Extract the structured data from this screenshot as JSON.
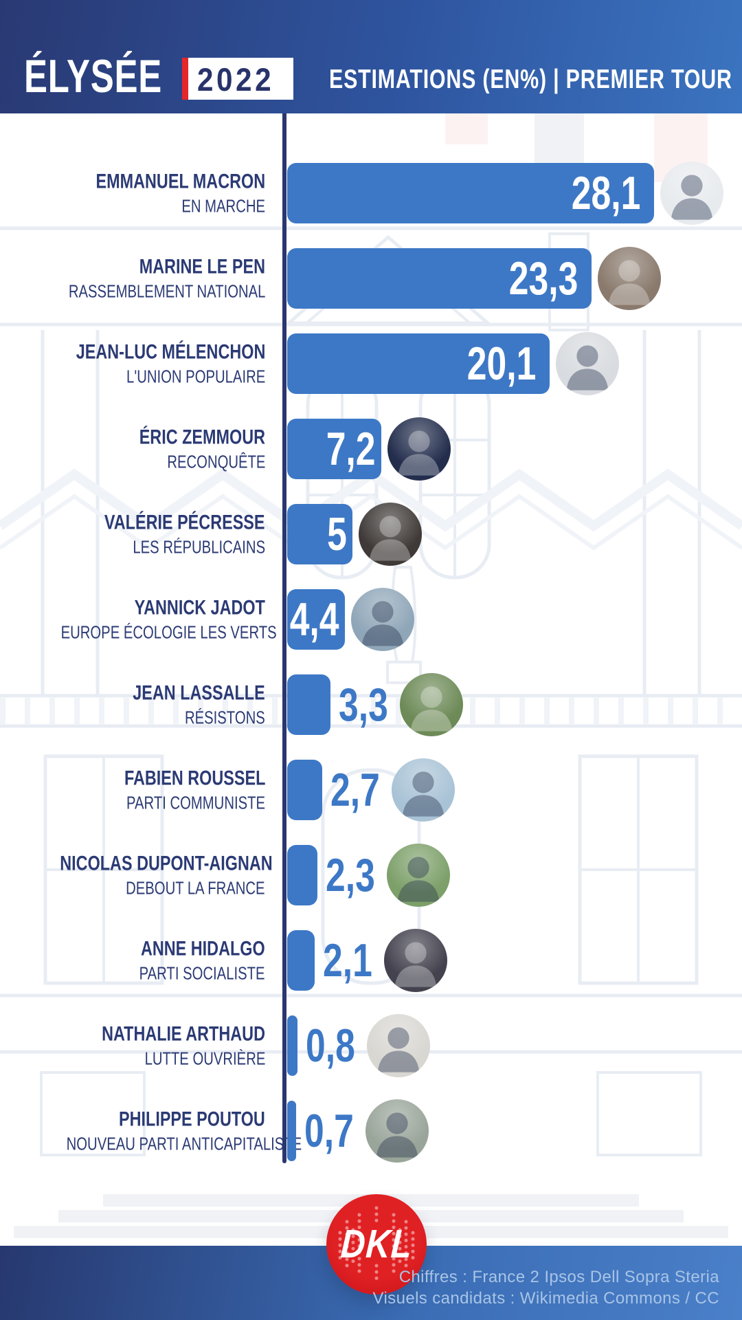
{
  "header": {
    "brand": "ÉLYSÉE",
    "year": "2022",
    "subtitle": "ESTIMATIONS (EN%) | PREMIER TOUR"
  },
  "rows": [
    {
      "name": "EMMANUEL MACRON",
      "party": "EN MARCHE",
      "value": "28,1",
      "value_num": 28.1,
      "photo_bg": "#e8ebee",
      "slug": "emmanuel-macron"
    },
    {
      "name": "MARINE LE PEN",
      "party": "RASSEMBLEMENT NATIONAL",
      "value": "23,3",
      "value_num": 23.3,
      "photo_bg": "#8a7a6d",
      "slug": "marine-le-pen"
    },
    {
      "name": "JEAN-LUC MÉLENCHON",
      "party": "L'UNION POPULAIRE",
      "value": "20,1",
      "value_num": 20.1,
      "photo_bg": "#d8dbdf",
      "slug": "jean-luc-melenchon"
    },
    {
      "name": "ÉRIC ZEMMOUR",
      "party": "RECONQUÊTE",
      "value": "7,2",
      "value_num": 7.2,
      "photo_bg": "#232e4d",
      "slug": "eric-zemmour"
    },
    {
      "name": "VALÉRIE PÉCRESSE",
      "party": "LES RÉPUBLICAINS",
      "value": "5",
      "value_num": 5,
      "photo_bg": "#3f3a38",
      "slug": "valerie-pecresse"
    },
    {
      "name": "YANNICK JADOT",
      "party": "EUROPE ÉCOLOGIE LES VERTS",
      "value": "4,4",
      "value_num": 4.4,
      "photo_bg": "#8fa6b8",
      "slug": "yannick-jadot"
    },
    {
      "name": "JEAN LASSALLE",
      "party": "RÉSISTONS",
      "value": "3,3",
      "value_num": 3.3,
      "photo_bg": "#6d8a57",
      "slug": "jean-lassalle"
    },
    {
      "name": "FABIEN ROUSSEL",
      "party": "PARTI COMMUNISTE",
      "value": "2,7",
      "value_num": 2.7,
      "photo_bg": "#a9c3d6",
      "slug": "fabien-roussel"
    },
    {
      "name": "NICOLAS DUPONT-AIGNAN",
      "party": "DEBOUT LA FRANCE",
      "value": "2,3",
      "value_num": 2.3,
      "photo_bg": "#7da06a",
      "slug": "nicolas-dupont-aignan"
    },
    {
      "name": "ANNE HIDALGO",
      "party": "PARTI SOCIALISTE",
      "value": "2,1",
      "value_num": 2.1,
      "photo_bg": "#43424e",
      "slug": "anne-hidalgo"
    },
    {
      "name": "NATHALIE ARTHAUD",
      "party": "LUTTE OUVRIÈRE",
      "value": "0,8",
      "value_num": 0.8,
      "photo_bg": "#d9d7d2",
      "slug": "nathalie-arthaud"
    },
    {
      "name": "PHILIPPE POUTOU",
      "party": "NOUVEAU PARTI ANTICAPITALISTE",
      "value": "0,7",
      "value_num": 0.7,
      "photo_bg": "#9aa59a",
      "slug": "philippe-poutou"
    }
  ],
  "footer": {
    "logo_text": "DKL",
    "credit_line1": "Chiffres : France 2 Ipsos Dell Sopra Steria",
    "credit_line2": "Visuels candidats : Wikimedia Commons / CC"
  },
  "colors": {
    "bar_blue": "#3d78c6",
    "axis_navy": "#2a366f",
    "text_navy": "#2b3a74",
    "accent_red": "#e5262b",
    "logo_red": "#d81b1b",
    "header_gradient_left": "#293973",
    "header_gradient_right": "#3b74c0",
    "credits_text": "#a9c4e6"
  },
  "chart_data": {
    "type": "bar",
    "orientation": "horizontal",
    "title": "ÉLYSÉE 2022 — ESTIMATIONS (EN%) | PREMIER TOUR",
    "categories": [
      "EMMANUEL MACRON",
      "MARINE LE PEN",
      "JEAN-LUC MÉLENCHON",
      "ÉRIC ZEMMOUR",
      "VALÉRIE PÉCRESSE",
      "YANNICK JADOT",
      "JEAN LASSALLE",
      "FABIEN ROUSSEL",
      "NICOLAS DUPONT-AIGNAN",
      "ANNE HIDALGO",
      "NATHALIE ARTHAUD",
      "PHILIPPE POUTOU"
    ],
    "parties": [
      "EN MARCHE",
      "RASSEMBLEMENT NATIONAL",
      "L'UNION POPULAIRE",
      "RECONQUÊTE",
      "LES RÉPUBLICAINS",
      "EUROPE ÉCOLOGIE LES VERTS",
      "RÉSISTONS",
      "PARTI COMMUNISTE",
      "DEBOUT LA FRANCE",
      "PARTI SOCIALISTE",
      "LUTTE OUVRIÈRE",
      "NOUVEAU PARTI ANTICAPITALISTE"
    ],
    "values": [
      28.1,
      23.3,
      20.1,
      7.2,
      5,
      4.4,
      3.3,
      2.7,
      2.3,
      2.1,
      0.8,
      0.7
    ],
    "value_labels": [
      "28,1",
      "23,3",
      "20,1",
      "7,2",
      "5",
      "4,4",
      "3,3",
      "2,7",
      "2,3",
      "2,1",
      "0,8",
      "0,7"
    ],
    "xlabel": "Estimations (en %)",
    "xlim": [
      0,
      30
    ],
    "grid": false,
    "legend": false
  }
}
